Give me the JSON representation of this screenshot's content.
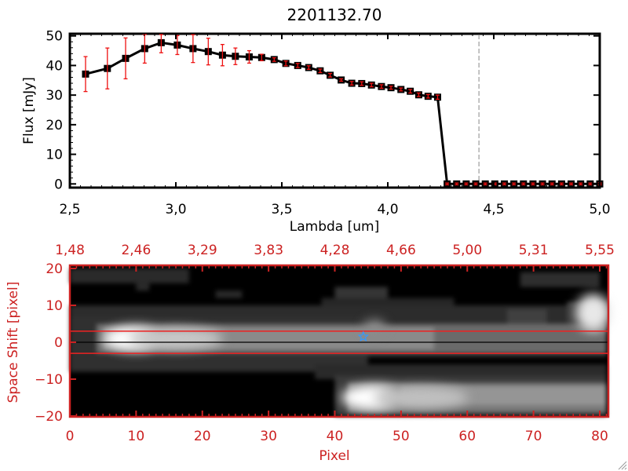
{
  "chart_data": [
    {
      "type": "line",
      "title": "2201132.70",
      "xlabel": "Lambda [um]",
      "ylabel": "Flux [mJy]",
      "xlim": [
        2.5,
        5.0
      ],
      "ylim": [
        0,
        50
      ],
      "xticks": [
        "2.5",
        "3.0",
        "3.5",
        "4.0",
        "4.5",
        "5.0"
      ],
      "yticks": [
        "0",
        "10",
        "20",
        "30",
        "40",
        "50"
      ],
      "marker_line_x": 4.43,
      "series": [
        {
          "name": "flux",
          "x": [
            2.574,
            2.677,
            2.763,
            2.853,
            2.931,
            3.007,
            3.081,
            3.153,
            3.22,
            3.281,
            3.346,
            3.405,
            3.464,
            3.519,
            3.575,
            3.627,
            3.681,
            3.728,
            3.78,
            3.83,
            3.877,
            3.923,
            3.97,
            4.015,
            4.062,
            4.106,
            4.146,
            4.19,
            4.235,
            4.28,
            4.325,
            4.37,
            4.415,
            4.46,
            4.505,
            4.55,
            4.595,
            4.64,
            4.685,
            4.73,
            4.775,
            4.82,
            4.865,
            4.91,
            4.955,
            5.0
          ],
          "y": [
            37.1,
            39.0,
            42.4,
            45.7,
            47.7,
            46.9,
            45.7,
            44.7,
            43.5,
            43.1,
            42.9,
            42.7,
            42.0,
            40.7,
            40.0,
            39.3,
            38.2,
            36.7,
            35.1,
            34.0,
            33.9,
            33.4,
            32.9,
            32.5,
            31.9,
            31.3,
            30.1,
            29.6,
            29.3,
            0,
            0,
            0,
            0,
            0,
            0,
            0,
            0,
            0,
            0,
            0,
            0,
            0,
            0,
            0,
            0,
            0
          ],
          "yerr": [
            5.9,
            6.9,
            6.9,
            4.9,
            3.4,
            3.2,
            4.7,
            4.5,
            3.6,
            2.8,
            2.1,
            1.1,
            0.6,
            0.8,
            0.7,
            0.6,
            0.6,
            0.6,
            0.4,
            0.6,
            0.6,
            0.6,
            0.6,
            0.5,
            0.5,
            0.6,
            0.6,
            0.6,
            0.7,
            0.3,
            0.3,
            0.3,
            0.3,
            0.3,
            0.3,
            0.3,
            0.3,
            0.3,
            0.3,
            0.3,
            0.3,
            0.3,
            0.3,
            0.3,
            0.3,
            0.3
          ]
        }
      ]
    },
    {
      "type": "heatmap",
      "xlabel": "Pixel",
      "ylabel": "Space Shift [pixel]",
      "xlim": [
        0,
        81
      ],
      "ylim": [
        -21,
        21
      ],
      "xticks": [
        "0",
        "10",
        "20",
        "30",
        "40",
        "50",
        "60",
        "70",
        "80"
      ],
      "yticks": [
        "20",
        "10",
        "0",
        "-10",
        "-20"
      ],
      "top_axis_ticks": [
        "1.48",
        "2.46",
        "3.29",
        "3.83",
        "4.28",
        "4.66",
        "5.00",
        "5.31",
        "5.55"
      ],
      "aperture_lines": [
        3,
        -3
      ],
      "center_line": 0,
      "source_marker": {
        "pixel": 44.3,
        "shift": 1.5
      }
    }
  ],
  "colors": {
    "axis_red": "#cc2222",
    "errorbar": "#ee1111",
    "star": "#3399ff",
    "line": "#000000"
  }
}
